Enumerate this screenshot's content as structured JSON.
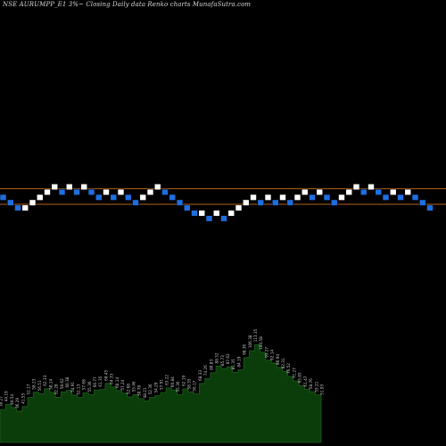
{
  "header": {
    "title": "NSE AURUMPP_E1 3%~  Closing Daily data  Renko  charts MunafaSutra.com"
  },
  "colors": {
    "background": "#000000",
    "up_brick": "#ffffff",
    "down_brick": "#1e6fe0",
    "level_line": "#b5651d",
    "volume_fill": "#0b3d0b",
    "volume_stroke": "#1e5a1e",
    "volume_label": "#c8c8c8"
  },
  "chart_data": [
    {
      "type": "renko",
      "title": "",
      "xlabel": "",
      "ylabel": "",
      "box_size_note": "3%",
      "horizontal_lines": [
        1,
        -1
      ],
      "bricks": [
        {
          "dir": "down",
          "level": 0
        },
        {
          "dir": "down",
          "level": -1
        },
        {
          "dir": "down",
          "level": -2
        },
        {
          "dir": "up",
          "level": -2
        },
        {
          "dir": "up",
          "level": -1
        },
        {
          "dir": "up",
          "level": 0
        },
        {
          "dir": "up",
          "level": 1
        },
        {
          "dir": "up",
          "level": 2
        },
        {
          "dir": "down",
          "level": 1
        },
        {
          "dir": "up",
          "level": 2
        },
        {
          "dir": "down",
          "level": 1
        },
        {
          "dir": "up",
          "level": 2
        },
        {
          "dir": "down",
          "level": 1
        },
        {
          "dir": "down",
          "level": 0
        },
        {
          "dir": "up",
          "level": 1
        },
        {
          "dir": "down",
          "level": 0
        },
        {
          "dir": "up",
          "level": 1
        },
        {
          "dir": "down",
          "level": 0
        },
        {
          "dir": "down",
          "level": -1
        },
        {
          "dir": "up",
          "level": 0
        },
        {
          "dir": "up",
          "level": 1
        },
        {
          "dir": "up",
          "level": 2
        },
        {
          "dir": "down",
          "level": 1
        },
        {
          "dir": "down",
          "level": 0
        },
        {
          "dir": "down",
          "level": -1
        },
        {
          "dir": "down",
          "level": -2
        },
        {
          "dir": "down",
          "level": -3
        },
        {
          "dir": "up",
          "level": -3
        },
        {
          "dir": "down",
          "level": -4
        },
        {
          "dir": "up",
          "level": -3
        },
        {
          "dir": "down",
          "level": -4
        },
        {
          "dir": "up",
          "level": -3
        },
        {
          "dir": "up",
          "level": -2
        },
        {
          "dir": "up",
          "level": -1
        },
        {
          "dir": "up",
          "level": 0
        },
        {
          "dir": "down",
          "level": -1
        },
        {
          "dir": "up",
          "level": 0
        },
        {
          "dir": "down",
          "level": -1
        },
        {
          "dir": "up",
          "level": 0
        },
        {
          "dir": "down",
          "level": -1
        },
        {
          "dir": "up",
          "level": 0
        },
        {
          "dir": "up",
          "level": 1
        },
        {
          "dir": "down",
          "level": 0
        },
        {
          "dir": "up",
          "level": 1
        },
        {
          "dir": "down",
          "level": 0
        },
        {
          "dir": "down",
          "level": -1
        },
        {
          "dir": "up",
          "level": 0
        },
        {
          "dir": "up",
          "level": 1
        },
        {
          "dir": "up",
          "level": 2
        },
        {
          "dir": "down",
          "level": 1
        },
        {
          "dir": "up",
          "level": 2
        },
        {
          "dir": "down",
          "level": 1
        },
        {
          "dir": "down",
          "level": 0
        },
        {
          "dir": "up",
          "level": 1
        },
        {
          "dir": "down",
          "level": 0
        },
        {
          "dir": "up",
          "level": 1
        },
        {
          "dir": "down",
          "level": 0
        },
        {
          "dir": "down",
          "level": -1
        },
        {
          "dir": "down",
          "level": -2
        }
      ]
    },
    {
      "type": "area",
      "title": "",
      "xlabel": "",
      "ylabel": "",
      "ylim": [
        0,
        120
      ],
      "values": [
        38.27,
        44.19,
        40.54,
        36.29,
        41.55,
        52.17,
        58.23,
        56.51,
        62.33,
        58.14,
        52.28,
        58.62,
        60.38,
        54.91,
        52.13,
        57.68,
        55.36,
        60.77,
        61.35,
        68.45,
        64.33,
        60.14,
        57.24,
        52.68,
        55.46,
        50.78,
        48.21,
        52.36,
        54.29,
        57.91,
        63.22,
        60.84,
        55.36,
        62.19,
        58.55,
        56.17,
        68.33,
        74.26,
        80.83,
        88.52,
        85.73,
        87.62,
        81.35,
        84.19,
        98.36,
        106.38,
        113.35,
        104.58,
        95.27,
        92.14,
        86.94,
        82.31,
        76.52,
        71.27,
        65.85,
        61.47,
        58.76,
        55.21,
        51.93
      ],
      "labels": [
        "38.27",
        "44.19",
        "40.54",
        "36.29",
        "41.55",
        "52.17",
        "58.23",
        "56.51",
        "62.33",
        "58.14",
        "52.28",
        "58.62",
        "60.38",
        "54.91",
        "52.13",
        "57.68",
        "55.36",
        "60.77",
        "61.35",
        "68.45",
        "64.33",
        "60.14",
        "57.24",
        "52.68",
        "55.46",
        "50.78",
        "48.21",
        "52.36",
        "54.29",
        "57.91",
        "63.22",
        "60.84",
        "55.36",
        "62.19",
        "58.55",
        "56.17",
        "68.33",
        "74.26",
        "80.83",
        "88.52",
        "85.73",
        "87.62",
        "81.35",
        "84.19",
        "98.36",
        "106.38",
        "113.35",
        "104.58",
        "95.27",
        "92.14",
        "86.94",
        "82.31",
        "76.52",
        "71.27",
        "65.85",
        "61.47",
        "58.76",
        "55.21",
        "51.93"
      ]
    }
  ]
}
